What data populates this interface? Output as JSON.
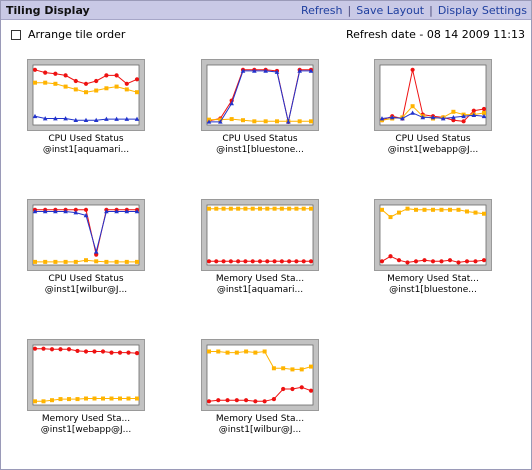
{
  "header": {
    "title": "Tiling Display",
    "links": [
      "Refresh",
      "Save Layout",
      "Display Settings"
    ]
  },
  "options": {
    "arrange_label": "Arrange tile order",
    "refresh_label": "Refresh date - 08 14 2009 11:13"
  },
  "colors": {
    "red": "#ee1111",
    "orange": "#ffb400",
    "blue": "#2233cc"
  },
  "tiles": [
    {
      "caption1": "CPU Used Status",
      "caption2": "@inst1[aquamari...",
      "series": [
        {
          "color": "red",
          "marker": "circle",
          "values": [
            95,
            90,
            88,
            85,
            75,
            70,
            75,
            85,
            85,
            70,
            78
          ]
        },
        {
          "color": "orange",
          "marker": "square",
          "values": [
            72,
            72,
            70,
            65,
            60,
            55,
            58,
            62,
            65,
            60,
            55
          ]
        },
        {
          "color": "blue",
          "marker": "triangle",
          "values": [
            12,
            8,
            8,
            8,
            5,
            5,
            5,
            7,
            7,
            7,
            7
          ]
        }
      ]
    },
    {
      "caption1": "CPU Used Status",
      "caption2": "@inst1[bluestone...",
      "series": [
        {
          "color": "red",
          "marker": "circle",
          "values": [
            4,
            8,
            40,
            95,
            95,
            95,
            93,
            2,
            95,
            95
          ]
        },
        {
          "color": "orange",
          "marker": "square",
          "values": [
            6,
            6,
            7,
            5,
            3,
            3,
            3,
            3,
            3,
            3
          ]
        },
        {
          "color": "blue",
          "marker": "triangle",
          "values": [
            2,
            2,
            35,
            93,
            93,
            93,
            91,
            2,
            93,
            93
          ]
        }
      ]
    },
    {
      "caption1": "CPU Used Status",
      "caption2": "@inst1[webapp@J...",
      "series": [
        {
          "color": "red",
          "marker": "circle",
          "values": [
            5,
            12,
            8,
            95,
            15,
            12,
            10,
            5,
            3,
            22,
            25
          ]
        },
        {
          "color": "orange",
          "marker": "square",
          "values": [
            5,
            8,
            10,
            30,
            12,
            8,
            10,
            20,
            15,
            15,
            18
          ]
        },
        {
          "color": "blue",
          "marker": "triangle",
          "values": [
            8,
            10,
            8,
            18,
            10,
            10,
            8,
            10,
            12,
            14,
            12
          ]
        }
      ]
    },
    {
      "caption1": "CPU Used Status",
      "caption2": "@inst1[wilbur@J...",
      "series": [
        {
          "color": "red",
          "marker": "circle",
          "values": [
            95,
            95,
            95,
            95,
            95,
            95,
            15,
            95,
            95,
            95,
            95
          ]
        },
        {
          "color": "orange",
          "marker": "square",
          "values": [
            2,
            2,
            2,
            2,
            2,
            5,
            3,
            2,
            2,
            2,
            2
          ]
        },
        {
          "color": "blue",
          "marker": "triangle",
          "values": [
            92,
            92,
            92,
            92,
            90,
            85,
            20,
            92,
            92,
            92,
            92
          ]
        }
      ]
    },
    {
      "caption1": "Memory Used Sta...",
      "caption2": "@inst1[aquamari...",
      "series": [
        {
          "color": "red",
          "marker": "circle",
          "values": [
            3,
            3,
            3,
            3,
            3,
            3,
            3,
            3,
            3,
            3,
            3,
            3,
            3,
            3,
            3
          ]
        },
        {
          "color": "orange",
          "marker": "square",
          "values": [
            97,
            97,
            97,
            97,
            97,
            97,
            97,
            97,
            97,
            97,
            97,
            97,
            97,
            97,
            97
          ]
        }
      ]
    },
    {
      "caption1": "Memory Used Stat...",
      "caption2": "@inst1[bluestone...",
      "series": [
        {
          "color": "red",
          "marker": "circle",
          "values": [
            3,
            12,
            5,
            1,
            3,
            5,
            3,
            3,
            5,
            1,
            3,
            3,
            5
          ]
        },
        {
          "color": "orange",
          "marker": "square",
          "values": [
            95,
            82,
            90,
            97,
            95,
            95,
            95,
            95,
            95,
            95,
            92,
            90,
            88
          ]
        }
      ]
    },
    {
      "caption1": "Memory Used Sta...",
      "caption2": "@inst1[webapp@J...",
      "series": [
        {
          "color": "red",
          "marker": "circle",
          "values": [
            97,
            97,
            96,
            96,
            96,
            93,
            92,
            92,
            92,
            90,
            90,
            90,
            89
          ]
        },
        {
          "color": "orange",
          "marker": "square",
          "values": [
            3,
            3,
            5,
            7,
            7,
            7,
            8,
            8,
            8,
            8,
            8,
            8,
            8
          ]
        }
      ]
    },
    {
      "caption1": "Memory Used Sta...",
      "caption2": "@inst1[wilbur@J...",
      "series": [
        {
          "color": "red",
          "marker": "circle",
          "values": [
            3,
            5,
            5,
            5,
            5,
            3,
            3,
            7,
            25,
            25,
            28,
            22
          ]
        },
        {
          "color": "orange",
          "marker": "square",
          "values": [
            92,
            92,
            90,
            90,
            92,
            90,
            92,
            62,
            62,
            60,
            60,
            65
          ]
        }
      ]
    }
  ]
}
